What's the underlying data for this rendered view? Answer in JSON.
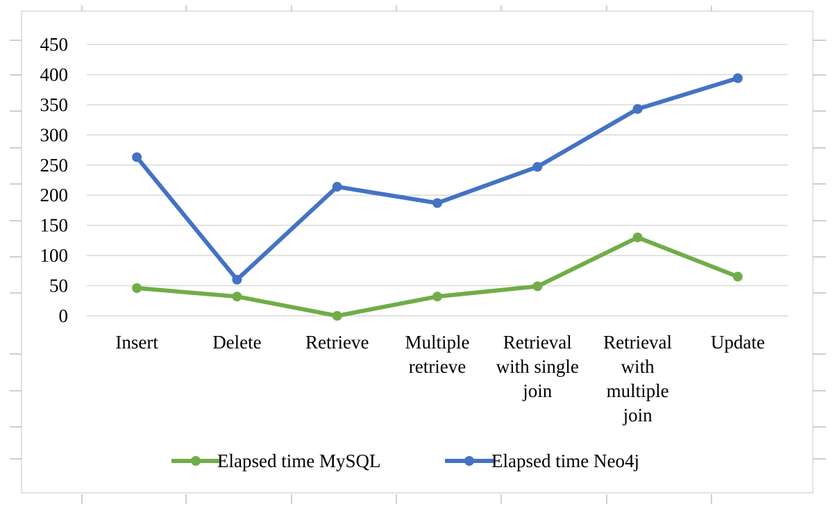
{
  "chart_data": {
    "type": "line",
    "title": "",
    "xlabel": "",
    "ylabel": "",
    "categories": [
      [
        "Insert"
      ],
      [
        "Delete"
      ],
      [
        "Retrieve"
      ],
      [
        "Multiple",
        "retrieve"
      ],
      [
        "Retrieval",
        "with single",
        "join"
      ],
      [
        "Retrieval",
        "with",
        "multiple",
        "join"
      ],
      [
        "Update"
      ]
    ],
    "ylim": [
      0,
      450
    ],
    "yticks": [
      0,
      50,
      100,
      150,
      200,
      250,
      300,
      350,
      400,
      450
    ],
    "grid": true,
    "legend": "bottom",
    "series": [
      {
        "name": "Elapsed time MySQL",
        "color": "#70ad47",
        "values": [
          46,
          32,
          0,
          32,
          49,
          130,
          65
        ]
      },
      {
        "name": "Elapsed time Neo4j",
        "color": "#4472c4",
        "values": [
          263,
          60,
          214,
          187,
          247,
          343,
          394
        ]
      }
    ]
  }
}
